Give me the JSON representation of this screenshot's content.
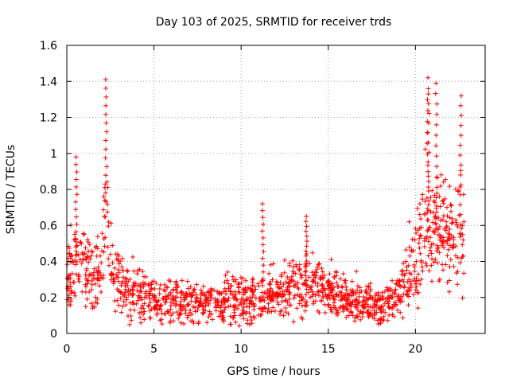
{
  "chart_data": {
    "type": "scatter",
    "title": "Day 103 of 2025, SRMTID for receiver trds",
    "xlabel": "GPS time / hours",
    "ylabel": "SRMTID / TECUs",
    "xlim": [
      0,
      24
    ],
    "ylim": [
      0,
      1.6
    ],
    "xticks": [
      0,
      5,
      10,
      15,
      20
    ],
    "xtick_labels": [
      "0",
      "5",
      "10",
      "15",
      "20"
    ],
    "yticks": [
      0,
      0.2,
      0.4,
      0.6,
      0.8,
      1,
      1.2,
      1.4,
      1.6
    ],
    "ytick_labels": [
      "0",
      "0.2",
      "0.4",
      "0.6",
      "0.8",
      "1",
      "1.2",
      "1.4",
      "1.6"
    ],
    "grid": true,
    "marker": "+",
    "series_color": "#ff0000",
    "approx_trend": {
      "x": [
        0,
        0.5,
        1,
        1.5,
        2,
        2.2,
        2.5,
        3,
        4,
        5,
        6,
        7,
        8,
        9,
        10,
        11,
        12,
        13,
        14,
        15,
        16,
        17,
        18,
        19,
        19.5,
        20,
        20.5,
        21,
        21.5,
        22,
        22.5
      ],
      "y": [
        0.32,
        0.4,
        0.38,
        0.32,
        0.35,
        0.8,
        0.4,
        0.3,
        0.22,
        0.18,
        0.18,
        0.17,
        0.16,
        0.17,
        0.2,
        0.18,
        0.22,
        0.25,
        0.27,
        0.25,
        0.2,
        0.17,
        0.16,
        0.2,
        0.3,
        0.45,
        0.55,
        0.6,
        0.55,
        0.5,
        0.55
      ]
    },
    "peaks": [
      {
        "x": 2.25,
        "y": 1.41
      },
      {
        "x": 0.55,
        "y": 0.98
      },
      {
        "x": 11.25,
        "y": 0.72
      },
      {
        "x": 13.75,
        "y": 0.65
      },
      {
        "x": 20.7,
        "y": 1.42
      },
      {
        "x": 21.2,
        "y": 1.39
      },
      {
        "x": 22.6,
        "y": 1.32
      },
      {
        "x": 20.75,
        "y": 1.33
      }
    ],
    "x_end": 22.8,
    "estimated_point_count": 1500
  }
}
